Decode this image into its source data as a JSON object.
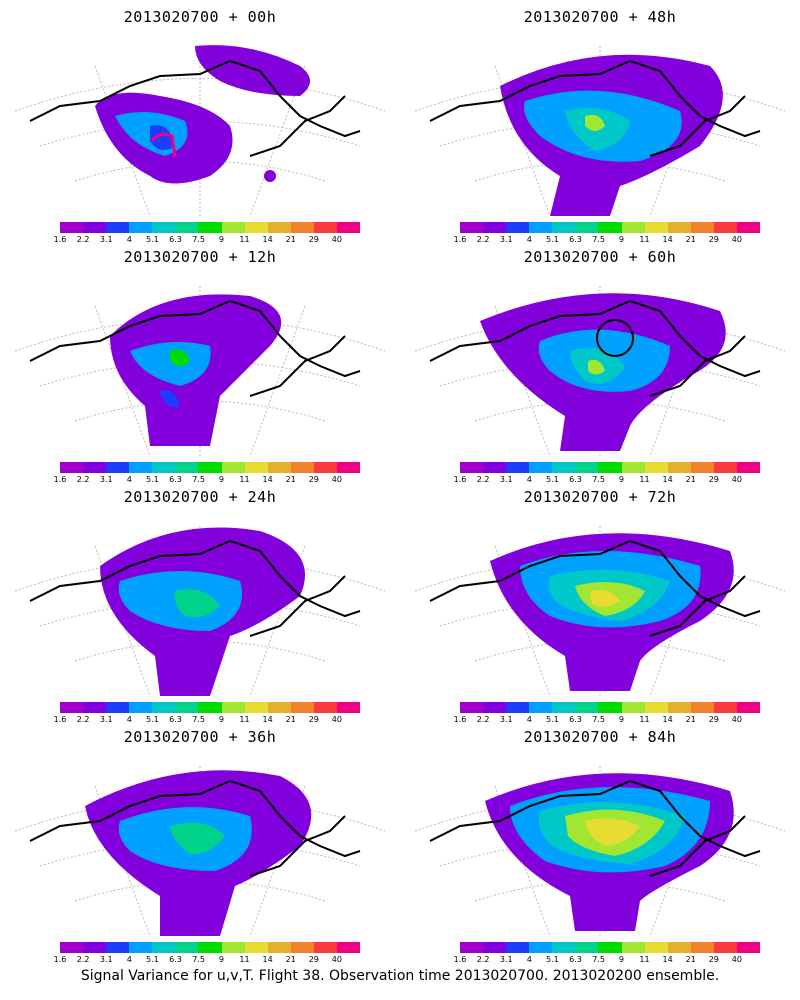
{
  "panels": [
    {
      "title": "2013020700 + 00h"
    },
    {
      "title": "2013020700 + 48h"
    },
    {
      "title": "2013020700 + 12h"
    },
    {
      "title": "2013020700 + 60h"
    },
    {
      "title": "2013020700 + 24h"
    },
    {
      "title": "2013020700 + 72h"
    },
    {
      "title": "2013020700 + 36h"
    },
    {
      "title": "2013020700 + 84h"
    }
  ],
  "colorbar": {
    "tick_labels": [
      "1.6",
      "2.2",
      "3.1",
      "4",
      "5.1",
      "6.3",
      "7.5",
      "9",
      "11",
      "14",
      "21",
      "29",
      "40"
    ],
    "colors": [
      "#a000c8",
      "#8200dc",
      "#1e3cff",
      "#00a0ff",
      "#00c8c8",
      "#00d28c",
      "#00dc00",
      "#a0e632",
      "#e6dc32",
      "#e6af2d",
      "#f08228",
      "#fa3c3c",
      "#f00082"
    ]
  },
  "caption": "Signal Variance for u,v,T. Flight 38. Observation time 2013020700. 2013020200 ensemble."
}
